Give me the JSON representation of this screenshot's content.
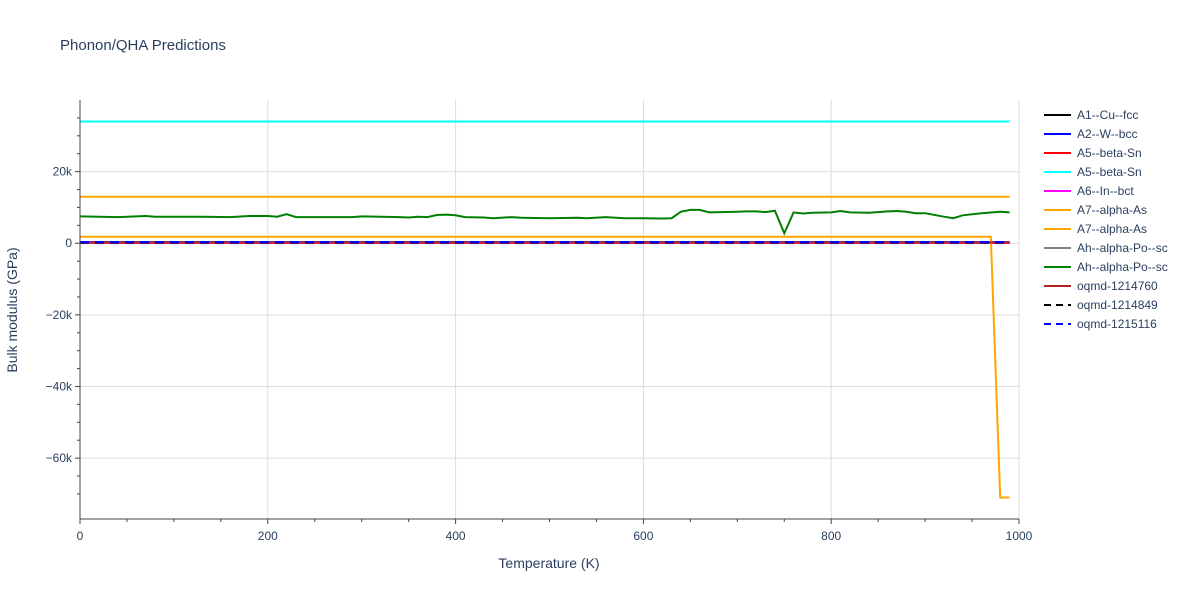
{
  "chart_data": {
    "type": "line",
    "title": "Phonon/QHA Predictions",
    "xlabel": "Temperature (K)",
    "ylabel": "Bulk modulus (GPa)",
    "xlim": [
      0,
      1000
    ],
    "ylim": [
      -77000,
      40000
    ],
    "x_ticks": [
      0,
      200,
      400,
      600,
      800,
      1000
    ],
    "x_tick_labels": [
      "0",
      "200",
      "400",
      "600",
      "800",
      "1000"
    ],
    "y_ticks": [
      -60000,
      -40000,
      -20000,
      0,
      20000
    ],
    "y_tick_labels": [
      "−60k",
      "−40k",
      "−20k",
      "0",
      "20k"
    ],
    "grid": true,
    "legend_position": "right",
    "series": [
      {
        "name": "A1--Cu--fcc",
        "color": "#000000",
        "dash": "solid",
        "x": [
          0,
          990
        ],
        "y": [
          140,
          140
        ]
      },
      {
        "name": "A2--W--bcc",
        "color": "#0000ff",
        "dash": "solid",
        "x": [
          0,
          990
        ],
        "y": [
          310,
          320
        ]
      },
      {
        "name": "A5--beta-Sn",
        "color": "#ff0000",
        "dash": "solid",
        "x": [
          0,
          990
        ],
        "y": [
          100,
          100
        ]
      },
      {
        "name": "A5--beta-Sn",
        "color": "#00ffff",
        "dash": "solid",
        "x": [
          0,
          990
        ],
        "y": [
          34000,
          34000
        ]
      },
      {
        "name": "A6--In--bct",
        "color": "#ff00ff",
        "dash": "solid",
        "x": [
          0,
          990
        ],
        "y": [
          150,
          150
        ]
      },
      {
        "name": "A7--alpha-As",
        "color": "#ffa500",
        "dash": "solid",
        "x": [
          0,
          990
        ],
        "y": [
          13000,
          13000
        ]
      },
      {
        "name": "A7--alpha-As",
        "color": "#ffa500",
        "dash": "solid",
        "x": [
          0,
          970,
          980,
          990
        ],
        "y": [
          1800,
          1800,
          -71000,
          -71000
        ]
      },
      {
        "name": "Ah--alpha-Po--sc",
        "color": "#808080",
        "dash": "solid",
        "x": [
          0,
          990
        ],
        "y": [
          200,
          200
        ]
      },
      {
        "name": "Ah--alpha-Po--sc",
        "color": "#008000",
        "dash": "solid",
        "x": [
          0,
          20,
          40,
          60,
          70,
          80,
          100,
          130,
          160,
          180,
          200,
          210,
          220,
          230,
          260,
          290,
          300,
          320,
          340,
          350,
          360,
          370,
          380,
          390,
          400,
          410,
          430,
          440,
          460,
          470,
          500,
          530,
          540,
          560,
          580,
          600,
          620,
          630,
          640,
          650,
          660,
          670,
          700,
          710,
          720,
          730,
          740,
          750,
          760,
          770,
          780,
          800,
          810,
          820,
          840,
          850,
          860,
          870,
          880,
          890,
          900,
          920,
          930,
          940,
          960,
          980,
          990
        ],
        "y": [
          7500,
          7400,
          7300,
          7500,
          7600,
          7400,
          7400,
          7400,
          7300,
          7600,
          7600,
          7400,
          8100,
          7300,
          7300,
          7300,
          7500,
          7400,
          7300,
          7200,
          7400,
          7300,
          7900,
          8000,
          7800,
          7300,
          7200,
          7000,
          7300,
          7100,
          7000,
          7100,
          7000,
          7300,
          7000,
          7000,
          6900,
          7000,
          8800,
          9300,
          9300,
          8600,
          8800,
          8900,
          8900,
          8700,
          9100,
          2800,
          8600,
          8300,
          8500,
          8600,
          9000,
          8600,
          8500,
          8700,
          8900,
          9000,
          8800,
          8400,
          8400,
          7400,
          7000,
          7800,
          8400,
          8800,
          8600
        ]
      },
      {
        "name": "oqmd-1214760",
        "color": "#b22222",
        "dash": "solid",
        "x": [
          0,
          990
        ],
        "y": [
          250,
          250
        ]
      },
      {
        "name": "oqmd-1214849",
        "color": "#000000",
        "dash": "dash",
        "x": [
          0,
          990
        ],
        "y": [
          180,
          180
        ]
      },
      {
        "name": "oqmd-1215116",
        "color": "#0000ff",
        "dash": "dash",
        "x": [
          0,
          990
        ],
        "y": [
          330,
          330
        ]
      }
    ]
  }
}
